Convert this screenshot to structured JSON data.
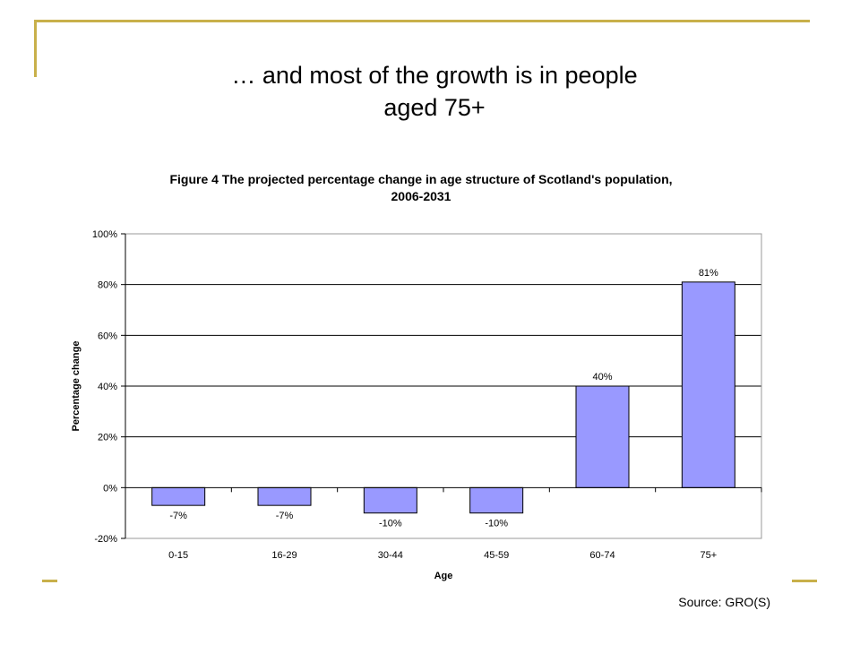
{
  "slide": {
    "title_line1": "… and most of the growth is in people",
    "title_line2": "aged 75+",
    "source": "Source: GRO(S)",
    "accent_color": "#c8b04a"
  },
  "chart_data": {
    "type": "bar",
    "title_line1": "Figure 4 The projected percentage change in age structure of Scotland's population,",
    "title_line2": "2006-2031",
    "xlabel": "Age",
    "ylabel": "Percentage change",
    "categories": [
      "0-15",
      "16-29",
      "30-44",
      "45-59",
      "60-74",
      "75+"
    ],
    "values": [
      -7,
      -7,
      -10,
      -10,
      40,
      81
    ],
    "data_labels": [
      "-7%",
      "-7%",
      "-10%",
      "-10%",
      "40%",
      "81%"
    ],
    "ylim": [
      -20,
      100
    ],
    "yticks": [
      -20,
      0,
      20,
      40,
      60,
      80,
      100
    ],
    "ytick_labels": [
      "-20%",
      "0%",
      "20%",
      "40%",
      "60%",
      "80%",
      "100%"
    ],
    "grid": true,
    "legend": "none",
    "bar_color": "#9999ff"
  }
}
